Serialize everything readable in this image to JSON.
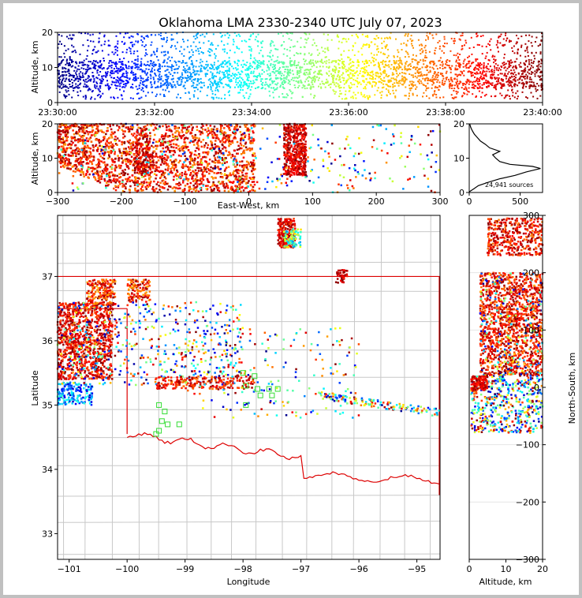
{
  "chart_data": [
    {
      "type": "scatter",
      "title": "Oklahoma LMA 2330-2340 UTC July 07, 2023",
      "xlabel": "",
      "ylabel": "Altitude, km",
      "x_ticks": [
        "23:30:00",
        "23:32:00",
        "23:34:00",
        "23:36:00",
        "23:38:00",
        "23:40:00"
      ],
      "y_ticks": [
        "0",
        "10",
        "20"
      ],
      "ylim": [
        0,
        20
      ],
      "color_by": "time",
      "colormap": "jet",
      "density_profile": [
        {
          "time_min": 0,
          "alt_lo": 3,
          "alt_hi": 20
        },
        {
          "time_min": 2,
          "alt_lo": 1,
          "alt_hi": 20
        },
        {
          "time_min": 4,
          "alt_lo": 1,
          "alt_hi": 20
        },
        {
          "time_min": 6,
          "alt_lo": 2,
          "alt_hi": 20
        },
        {
          "time_min": 8,
          "alt_lo": 1,
          "alt_hi": 20
        },
        {
          "time_min": 10,
          "alt_lo": 2,
          "alt_hi": 20
        }
      ]
    },
    {
      "type": "scatter",
      "title": "",
      "xlabel": "East-West, km",
      "ylabel": "Altitude, km",
      "x_ticks": [
        "−300",
        "−200",
        "−100",
        "0",
        "100",
        "200",
        "300"
      ],
      "y_ticks": [
        "0",
        "10",
        "20"
      ],
      "xlim": [
        -300,
        300
      ],
      "ylim": [
        0,
        20
      ],
      "clusters": [
        {
          "x_range": [
            -300,
            -180
          ],
          "alt_range": [
            5,
            20
          ],
          "dominant": "late"
        },
        {
          "x_range": [
            -180,
            -150
          ],
          "alt_range": [
            5,
            18
          ],
          "dominant": "late"
        },
        {
          "x_range": [
            55,
            90
          ],
          "alt_range": [
            5,
            20
          ],
          "dominant": "late"
        }
      ]
    },
    {
      "type": "line",
      "title": "",
      "x_ticks": [
        "0",
        "500"
      ],
      "y_ticks": [
        "0",
        "10",
        "20"
      ],
      "xlim": [
        0,
        720
      ],
      "ylim": [
        0,
        20
      ],
      "annotation": "24,941 sources",
      "profile": [
        {
          "count": 0,
          "alt": 0.2
        },
        {
          "count": 40,
          "alt": 1
        },
        {
          "count": 90,
          "alt": 2
        },
        {
          "count": 190,
          "alt": 3
        },
        {
          "count": 300,
          "alt": 4
        },
        {
          "count": 450,
          "alt": 5
        },
        {
          "count": 560,
          "alt": 6
        },
        {
          "count": 700,
          "alt": 7
        },
        {
          "count": 620,
          "alt": 7.6
        },
        {
          "count": 400,
          "alt": 8.2
        },
        {
          "count": 300,
          "alt": 9
        },
        {
          "count": 260,
          "alt": 10
        },
        {
          "count": 230,
          "alt": 11
        },
        {
          "count": 300,
          "alt": 12
        },
        {
          "count": 200,
          "alt": 13
        },
        {
          "count": 160,
          "alt": 14
        },
        {
          "count": 110,
          "alt": 15
        },
        {
          "count": 80,
          "alt": 16
        },
        {
          "count": 50,
          "alt": 17
        },
        {
          "count": 30,
          "alt": 18
        },
        {
          "count": 15,
          "alt": 19
        },
        {
          "count": 5,
          "alt": 20
        }
      ]
    },
    {
      "type": "scatter",
      "title": "",
      "xlabel": "Longitude",
      "ylabel": "Latitude",
      "x_ticks": [
        "−101",
        "−100",
        "−99",
        "−98",
        "−97",
        "−96",
        "−95"
      ],
      "y_ticks": [
        "33",
        "34",
        "35",
        "36",
        "37"
      ],
      "xlim": [
        -101.2,
        -94.6
      ],
      "ylim": [
        32.6,
        37.95
      ],
      "station_markers": [
        [
          -99.45,
          35.0
        ],
        [
          -99.35,
          34.9
        ],
        [
          -99.4,
          34.75
        ],
        [
          -99.3,
          34.7
        ],
        [
          -99.1,
          34.7
        ],
        [
          -99.45,
          34.6
        ],
        [
          -99.5,
          34.55
        ],
        [
          -98.0,
          35.5
        ],
        [
          -97.95,
          35.3
        ],
        [
          -97.95,
          35.0
        ],
        [
          -97.8,
          35.45
        ],
        [
          -97.75,
          35.25
        ],
        [
          -97.7,
          35.15
        ],
        [
          -97.55,
          35.25
        ],
        [
          -97.5,
          35.15
        ],
        [
          -97.4,
          35.25
        ]
      ],
      "clusters": [
        {
          "lon": [
            -101.2,
            -100.2
          ],
          "lat": [
            35.4,
            36.6
          ],
          "dominant": "late"
        },
        {
          "lon": [
            -100.7,
            -100.2
          ],
          "lat": [
            36.55,
            36.95
          ],
          "dominant": "late"
        },
        {
          "lon": [
            -100.0,
            -99.6
          ],
          "lat": [
            36.7,
            36.95
          ],
          "dominant": "late"
        },
        {
          "lon": [
            -97.4,
            -97.1
          ],
          "lat": [
            37.45,
            37.9
          ],
          "dominant": "late"
        }
      ]
    },
    {
      "type": "scatter",
      "title": "",
      "xlabel": "Altitude, km",
      "ylabel": "North-South, km",
      "x_ticks": [
        "0",
        "10",
        "20"
      ],
      "y_ticks": [
        "−300",
        "−200",
        "−100",
        "0",
        "100",
        "200",
        "300"
      ],
      "xlim": [
        0,
        20
      ],
      "ylim": [
        -300,
        300
      ],
      "clusters": [
        {
          "alt_range": [
            5,
            20
          ],
          "ns_range": [
            230,
            295
          ],
          "dominant": "late"
        },
        {
          "alt_range": [
            3,
            20
          ],
          "ns_range": [
            20,
            200
          ],
          "dominant": "late"
        },
        {
          "alt_range": [
            1,
            20
          ],
          "ns_range": [
            -80,
            20
          ],
          "dominant": "mixed"
        }
      ]
    }
  ],
  "colors": {
    "background": "#ffffff",
    "border": "#c0c0c0",
    "state_border": "#dd0000",
    "county_lines": "#c8c8c8",
    "station_marker": "#33dd33"
  }
}
